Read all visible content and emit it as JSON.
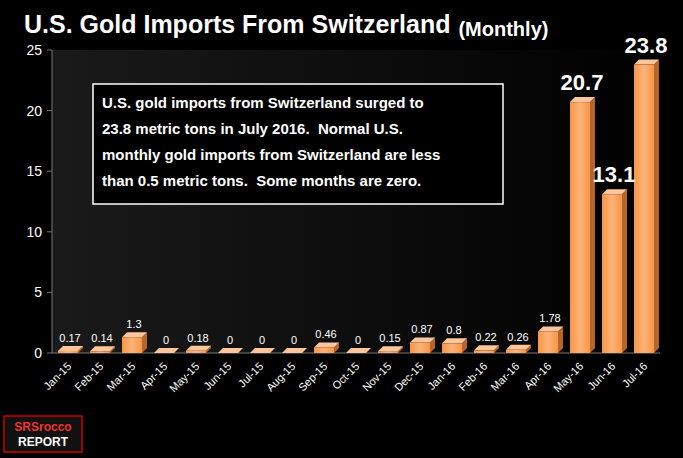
{
  "chart_data": {
    "type": "bar",
    "title": "U.S. Gold Imports From Switzerland",
    "subtitle": "(Monthly)",
    "categories": [
      "Jan-15",
      "Feb-15",
      "Mar-15",
      "Apr-15",
      "May-15",
      "Jun-15",
      "Jul-15",
      "Aug-15",
      "Sep-15",
      "Oct-15",
      "Nov-15",
      "Dec-15",
      "Jan-16",
      "Feb-16",
      "Mar-16",
      "Apr-16",
      "May-16",
      "Jun-16",
      "Jul-16"
    ],
    "values": [
      0.17,
      0.14,
      1.3,
      0,
      0.18,
      0,
      0,
      0,
      0.46,
      0,
      0.15,
      0.87,
      0.8,
      0.22,
      0.26,
      1.78,
      20.7,
      13.1,
      23.8
    ],
    "color": "#f79646",
    "ylim": [
      0,
      25
    ],
    "yticks": [
      0,
      5,
      10,
      15,
      20,
      25
    ],
    "grid": false,
    "data_labels": true,
    "annotations": [
      {
        "lines": [
          "U.S. gold imports from Switzerland surged to",
          "23.8 metric tons in July 2016.  Normal U.S.",
          "monthly gold imports from Switzerland are less",
          "than 0.5 metric tons.  Some months are zero."
        ]
      },
      {
        "lines": [
          "SRSrocco",
          "REPORT"
        ]
      }
    ]
  }
}
